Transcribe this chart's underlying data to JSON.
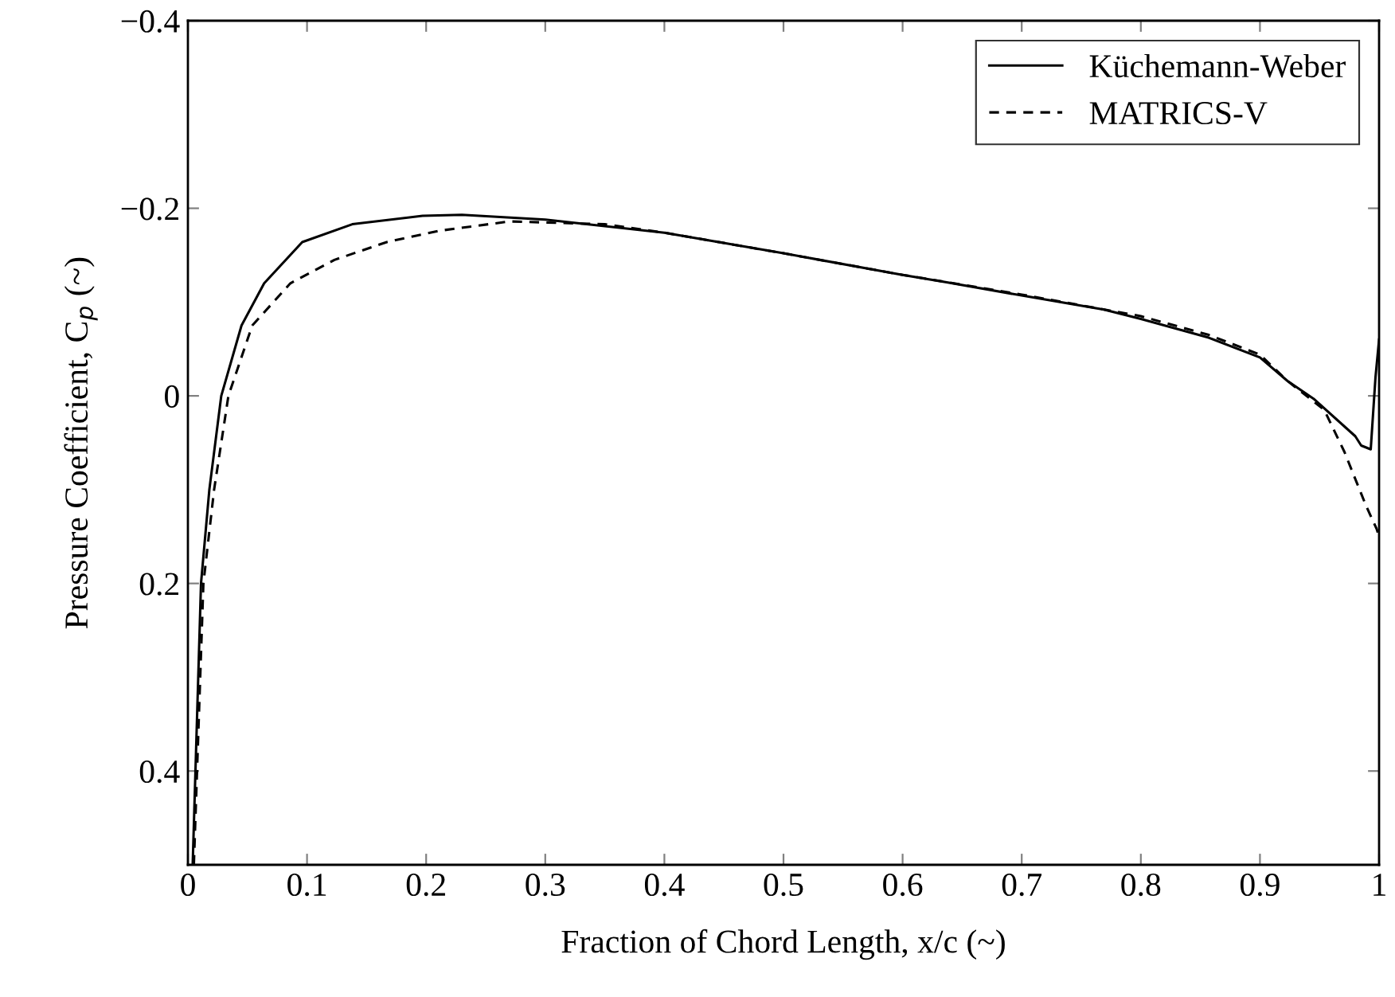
{
  "chart_data": {
    "type": "line",
    "xlabel": "Fraction of Chord Length, x/c (~)",
    "ylabel": "Pressure Coefficient, C$_{p}$ (~)",
    "xlim": [
      0,
      1
    ],
    "ylim": [
      0.5,
      -0.4
    ],
    "xticks": [
      0,
      0.1,
      0.2,
      0.3,
      0.4,
      0.5,
      0.6,
      0.7,
      0.8,
      0.9,
      1
    ],
    "yticks": [
      {
        "value": -0.4,
        "label": "−0.4"
      },
      {
        "value": -0.2,
        "label": "−0.2"
      },
      0,
      0.2,
      0.4
    ],
    "grid": false,
    "legend": "top right",
    "marker": "none",
    "series": [
      {
        "name": "Küchemann-Weber",
        "color": "#000000",
        "line_style": "solid",
        "x": [
          0.004,
          0.011,
          0.018,
          0.028,
          0.045,
          0.064,
          0.096,
          0.138,
          0.197,
          0.23,
          0.3,
          0.4,
          0.5,
          0.6,
          0.637,
          0.7,
          0.769,
          0.8,
          0.857,
          0.9,
          0.923,
          0.945,
          0.98,
          0.985,
          0.993,
          0.997,
          1.0
        ],
        "values": [
          0.5,
          0.2,
          0.1,
          0,
          -0.075,
          -0.12,
          -0.164,
          -0.183,
          -0.192,
          -0.193,
          -0.188,
          -0.174,
          -0.152,
          -0.129,
          -0.121,
          -0.107,
          -0.092,
          -0.082,
          -0.062,
          -0.041,
          -0.016,
          0.003,
          0.043,
          0.053,
          0.057,
          -0.02,
          -0.06
        ]
      },
      {
        "name": "MATRICS-V",
        "color": "#000000",
        "line_style": "dashed",
        "x": [
          0.005,
          0.013,
          0.022,
          0.034,
          0.054,
          0.086,
          0.123,
          0.167,
          0.211,
          0.27,
          0.35,
          0.4,
          0.5,
          0.6,
          0.7,
          0.8,
          0.857,
          0.9,
          0.923,
          0.954,
          0.971,
          0.989,
          0.998,
          1.0
        ],
        "values": [
          0.5,
          0.2,
          0.1,
          0,
          -0.075,
          -0.12,
          -0.145,
          -0.164,
          -0.176,
          -0.186,
          -0.183,
          -0.174,
          -0.152,
          -0.129,
          -0.108,
          -0.085,
          -0.065,
          -0.044,
          -0.016,
          0.015,
          0.06,
          0.117,
          0.142,
          0.15
        ]
      }
    ]
  }
}
